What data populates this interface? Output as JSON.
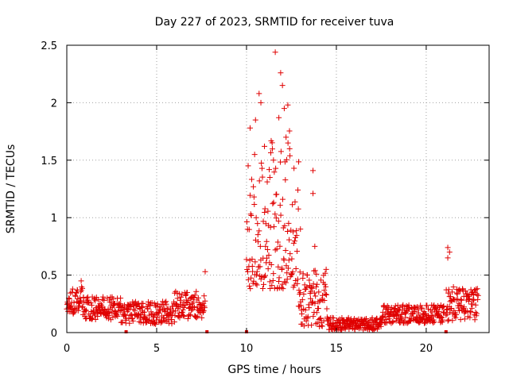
{
  "chart_data": {
    "type": "scatter",
    "title": "Day 227 of 2023, SRMTID for receiver tuva",
    "xlabel": "GPS time / hours",
    "ylabel": "SRMTID / TECUs",
    "xlim": [
      0,
      23.5
    ],
    "ylim": [
      0,
      2.5
    ],
    "x_ticks": [
      0,
      5,
      10,
      15,
      20
    ],
    "x_tick_labels": [
      "0",
      "5",
      "10",
      "15",
      "20"
    ],
    "y_ticks": [
      0,
      0.5,
      1,
      1.5,
      2,
      2.5
    ],
    "y_tick_labels": [
      "0",
      "0.5",
      "1",
      "1.5",
      "2",
      "2.5"
    ],
    "grid": true,
    "marker": "+",
    "color": "#e00000",
    "data_gaps_at_hours": [
      3.3,
      7.8,
      10.0,
      21.1
    ],
    "series": [
      {
        "name": "SRMTID",
        "segments": [
          {
            "x_range": [
              0.0,
              0.9
            ],
            "baseline": 0.28,
            "spread": 0.12
          },
          {
            "x_range": [
              0.9,
              3.0
            ],
            "baseline": 0.21,
            "spread": 0.1
          },
          {
            "x_range": [
              3.0,
              6.0
            ],
            "baseline": 0.17,
            "spread": 0.1
          },
          {
            "x_range": [
              6.0,
              7.7
            ],
            "baseline": 0.24,
            "spread": 0.12
          },
          {
            "x_range": [
              10.0,
              12.9
            ],
            "baseline": 0.85,
            "spread": 0.6
          },
          {
            "x_range": [
              12.9,
              14.5
            ],
            "baseline": 0.3,
            "spread": 0.25
          },
          {
            "x_range": [
              14.5,
              17.5
            ],
            "baseline": 0.07,
            "spread": 0.06
          },
          {
            "x_range": [
              17.5,
              21.0
            ],
            "baseline": 0.16,
            "spread": 0.08
          },
          {
            "x_range": [
              21.1,
              22.9
            ],
            "baseline": 0.25,
            "spread": 0.15
          }
        ],
        "notable_points": [
          {
            "x": 0.8,
            "y": 0.45
          },
          {
            "x": 7.7,
            "y": 0.53
          },
          {
            "x": 10.2,
            "y": 1.78
          },
          {
            "x": 10.5,
            "y": 1.85
          },
          {
            "x": 10.7,
            "y": 2.08
          },
          {
            "x": 10.8,
            "y": 2.0
          },
          {
            "x": 11.0,
            "y": 1.62
          },
          {
            "x": 11.3,
            "y": 1.35
          },
          {
            "x": 11.5,
            "y": 1.5
          },
          {
            "x": 11.6,
            "y": 2.44
          },
          {
            "x": 11.8,
            "y": 1.87
          },
          {
            "x": 11.9,
            "y": 2.26
          },
          {
            "x": 12.0,
            "y": 2.15
          },
          {
            "x": 12.1,
            "y": 1.95
          },
          {
            "x": 12.3,
            "y": 1.98
          },
          {
            "x": 12.2,
            "y": 1.7
          },
          {
            "x": 12.4,
            "y": 1.6
          },
          {
            "x": 13.0,
            "y": 0.9
          },
          {
            "x": 13.7,
            "y": 1.41
          },
          {
            "x": 13.7,
            "y": 1.21
          },
          {
            "x": 13.8,
            "y": 0.75
          },
          {
            "x": 21.2,
            "y": 0.74
          },
          {
            "x": 21.3,
            "y": 0.7
          },
          {
            "x": 21.2,
            "y": 0.65
          }
        ]
      }
    ]
  }
}
